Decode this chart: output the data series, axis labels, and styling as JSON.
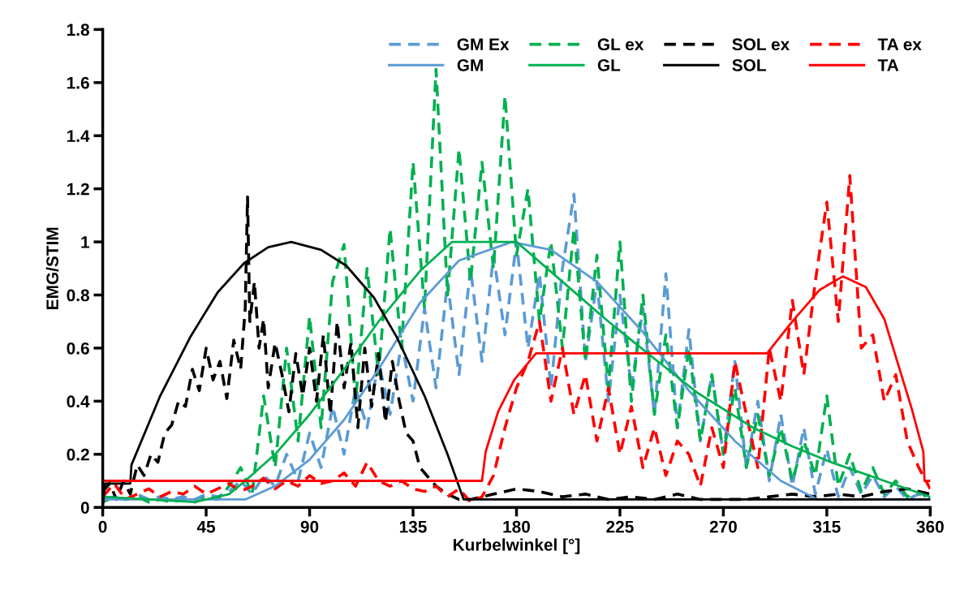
{
  "chart_data": {
    "type": "line",
    "xlabel": "Kurbelwinkel [°]",
    "ylabel": "EMG/STIM",
    "xlim": [
      0,
      360
    ],
    "xticks": [
      0,
      45,
      90,
      135,
      180,
      225,
      270,
      315,
      360
    ],
    "ylim": [
      0,
      1.8
    ],
    "yticks": [
      0,
      0.2,
      0.4,
      0.6,
      0.8,
      1,
      1.2,
      1.4,
      1.6,
      1.8
    ],
    "grid": false,
    "legend": "top right",
    "marker": "none",
    "series": [
      {
        "name": "GM Ex",
        "color": "#5b9bd5",
        "line_style": "dashed",
        "x": [
          0,
          5,
          10,
          15,
          20,
          25,
          30,
          35,
          40,
          45,
          50,
          55,
          60,
          65,
          70,
          75,
          80,
          85,
          90,
          95,
          100,
          105,
          110,
          115,
          120,
          125,
          130,
          135,
          140,
          145,
          150,
          155,
          160,
          165,
          170,
          175,
          180,
          185,
          190,
          195,
          200,
          205,
          210,
          215,
          220,
          225,
          230,
          235,
          240,
          245,
          250,
          255,
          260,
          265,
          270,
          275,
          280,
          285,
          290,
          295,
          300,
          305,
          310,
          315,
          320,
          325,
          330,
          335,
          340,
          345,
          350,
          355,
          360
        ],
        "values": [
          0.03,
          0.04,
          0.03,
          0.05,
          0.03,
          0.04,
          0.03,
          0.04,
          0.03,
          0.05,
          0.04,
          0.06,
          0.1,
          0.05,
          0.12,
          0.08,
          0.2,
          0.1,
          0.28,
          0.15,
          0.38,
          0.2,
          0.45,
          0.3,
          0.55,
          0.35,
          0.62,
          0.4,
          0.75,
          0.45,
          0.85,
          0.5,
          0.9,
          0.55,
          0.95,
          0.65,
          1.0,
          0.6,
          0.88,
          0.45,
          0.9,
          1.18,
          0.55,
          0.85,
          0.4,
          0.8,
          0.45,
          0.75,
          0.35,
          0.88,
          0.3,
          0.67,
          0.25,
          0.5,
          0.2,
          0.55,
          0.15,
          0.4,
          0.1,
          0.35,
          0.08,
          0.3,
          0.05,
          0.22,
          0.04,
          0.15,
          0.05,
          0.12,
          0.04,
          0.08,
          0.03,
          0.05,
          0.03
        ]
      },
      {
        "name": "GM",
        "color": "#5b9bd5",
        "line_style": "solid",
        "x": [
          0,
          62,
          75,
          90,
          105,
          120,
          138,
          155,
          178,
          195,
          215,
          235,
          255,
          275,
          295,
          311,
          360
        ],
        "values": [
          0.03,
          0.03,
          0.08,
          0.18,
          0.33,
          0.52,
          0.77,
          0.93,
          1.0,
          0.97,
          0.85,
          0.66,
          0.44,
          0.25,
          0.1,
          0.03,
          0.03
        ]
      },
      {
        "name": "GL ex",
        "color": "#00b050",
        "line_style": "dashed",
        "x": [
          0,
          5,
          10,
          15,
          20,
          25,
          30,
          35,
          40,
          45,
          50,
          55,
          60,
          65,
          70,
          75,
          80,
          85,
          90,
          95,
          100,
          105,
          110,
          115,
          120,
          125,
          130,
          135,
          140,
          145,
          150,
          155,
          160,
          165,
          170,
          175,
          180,
          185,
          190,
          195,
          200,
          205,
          210,
          215,
          220,
          225,
          230,
          235,
          240,
          245,
          250,
          255,
          260,
          265,
          270,
          275,
          280,
          285,
          290,
          295,
          300,
          305,
          310,
          315,
          320,
          325,
          330,
          335,
          340,
          345,
          350,
          355,
          360
        ],
        "values": [
          0.02,
          0.04,
          0.03,
          0.04,
          0.02,
          0.03,
          0.02,
          0.03,
          0.02,
          0.04,
          0.03,
          0.08,
          0.15,
          0.05,
          0.42,
          0.15,
          0.6,
          0.25,
          0.72,
          0.3,
          0.85,
          0.99,
          0.4,
          0.9,
          0.5,
          1.05,
          0.6,
          1.3,
          0.75,
          1.65,
          0.8,
          1.35,
          0.85,
          1.3,
          0.9,
          1.55,
          0.95,
          1.2,
          0.7,
          1.0,
          0.6,
          1.05,
          0.55,
          0.95,
          0.45,
          1.0,
          0.4,
          0.8,
          0.35,
          0.65,
          0.3,
          0.6,
          0.25,
          0.5,
          0.2,
          0.45,
          0.15,
          0.35,
          0.12,
          0.3,
          0.1,
          0.25,
          0.12,
          0.42,
          0.08,
          0.2,
          0.06,
          0.15,
          0.05,
          0.1,
          0.04,
          0.06,
          0.03
        ]
      },
      {
        "name": "GL",
        "color": "#00b050",
        "line_style": "solid",
        "x": [
          0,
          20,
          40,
          55,
          62,
          75,
          90,
          105,
          120,
          138,
          152,
          180,
          200,
          220,
          240,
          259,
          283,
          300,
          317,
          340,
          360
        ],
        "values": [
          0.04,
          0.03,
          0.02,
          0.05,
          0.1,
          0.2,
          0.35,
          0.52,
          0.7,
          0.89,
          1.0,
          1.0,
          0.85,
          0.7,
          0.56,
          0.43,
          0.3,
          0.23,
          0.17,
          0.1,
          0.04
        ]
      },
      {
        "name": "SOL ex",
        "color": "#000000",
        "line_style": "dashed",
        "x": [
          0,
          3,
          6,
          9,
          12,
          15,
          18,
          21,
          24,
          27,
          30,
          33,
          36,
          39,
          42,
          45,
          48,
          51,
          54,
          57,
          60,
          62,
          63,
          64,
          66,
          68,
          70,
          72,
          75,
          78,
          81,
          84,
          87,
          90,
          93,
          96,
          99,
          102,
          105,
          108,
          111,
          114,
          117,
          120,
          123,
          126,
          129,
          132,
          135,
          138,
          141,
          145,
          150,
          155,
          160,
          170,
          180,
          190,
          200,
          210,
          220,
          230,
          240,
          250,
          260,
          270,
          280,
          290,
          300,
          310,
          320,
          330,
          340,
          350,
          360
        ],
        "values": [
          0.06,
          0.09,
          0.03,
          0.1,
          0.05,
          0.16,
          0.12,
          0.2,
          0.17,
          0.28,
          0.31,
          0.4,
          0.38,
          0.52,
          0.44,
          0.6,
          0.48,
          0.55,
          0.41,
          0.63,
          0.52,
          0.75,
          1.17,
          0.7,
          0.85,
          0.6,
          0.71,
          0.45,
          0.62,
          0.5,
          0.36,
          0.58,
          0.42,
          0.6,
          0.4,
          0.65,
          0.35,
          0.7,
          0.45,
          0.62,
          0.3,
          0.6,
          0.38,
          0.58,
          0.32,
          0.55,
          0.4,
          0.28,
          0.25,
          0.15,
          0.12,
          0.08,
          0.05,
          0.03,
          0.03,
          0.05,
          0.07,
          0.06,
          0.04,
          0.05,
          0.03,
          0.04,
          0.03,
          0.05,
          0.03,
          0.03,
          0.03,
          0.04,
          0.05,
          0.04,
          0.05,
          0.04,
          0.06,
          0.07,
          0.05
        ]
      },
      {
        "name": "SOL",
        "color": "#000000",
        "line_style": "solid",
        "x": [
          0,
          1,
          12,
          12.5,
          25,
          38,
          50,
          61.5,
          72,
          82,
          95,
          106,
          118,
          128,
          140,
          150,
          157,
          360
        ],
        "values": [
          0,
          0.09,
          0.09,
          0.16,
          0.42,
          0.64,
          0.81,
          0.92,
          0.98,
          1.0,
          0.97,
          0.91,
          0.79,
          0.64,
          0.42,
          0.2,
          0.03,
          0.03
        ]
      },
      {
        "name": "TA ex",
        "color": "#ff0000",
        "line_style": "dashed",
        "x": [
          0,
          5,
          10,
          15,
          20,
          25,
          30,
          35,
          40,
          45,
          50,
          55,
          60,
          65,
          70,
          75,
          80,
          85,
          90,
          95,
          100,
          105,
          110,
          115,
          120,
          125,
          130,
          135,
          140,
          145,
          150,
          155,
          160,
          165,
          170,
          175,
          180,
          185,
          190,
          195,
          200,
          205,
          210,
          215,
          220,
          225,
          230,
          235,
          240,
          245,
          250,
          255,
          260,
          265,
          270,
          275,
          280,
          285,
          290,
          295,
          300,
          305,
          310,
          315,
          320,
          325,
          330,
          335,
          340,
          345,
          350,
          355,
          360
        ],
        "values": [
          0.04,
          0.09,
          0.03,
          0.05,
          0.07,
          0.04,
          0.06,
          0.05,
          0.08,
          0.05,
          0.07,
          0.09,
          0.06,
          0.08,
          0.11,
          0.07,
          0.1,
          0.08,
          0.12,
          0.09,
          0.1,
          0.13,
          0.08,
          0.17,
          0.1,
          0.08,
          0.1,
          0.07,
          0.06,
          0.08,
          0.04,
          0.07,
          0.02,
          0.04,
          0.12,
          0.3,
          0.45,
          0.55,
          0.7,
          0.4,
          0.6,
          0.35,
          0.5,
          0.25,
          0.45,
          0.2,
          0.38,
          0.15,
          0.3,
          0.12,
          0.25,
          0.2,
          0.08,
          0.3,
          0.15,
          0.55,
          0.35,
          0.15,
          0.6,
          0.4,
          0.78,
          0.5,
          0.85,
          1.15,
          0.7,
          1.25,
          0.6,
          0.65,
          0.4,
          0.5,
          0.25,
          0.15,
          0.07
        ]
      },
      {
        "name": "TA",
        "color": "#ff0000",
        "line_style": "solid",
        "x": [
          0,
          165,
          166.6,
          172,
          179,
          188.5,
          289,
          300,
          312,
          322,
          332,
          340,
          346.7,
          352,
          357,
          357.5,
          360
        ],
        "values": [
          0.1,
          0.1,
          0.21,
          0.36,
          0.48,
          0.58,
          0.58,
          0.7,
          0.82,
          0.87,
          0.83,
          0.71,
          0.52,
          0.37,
          0.21,
          0.1,
          0.1
        ]
      }
    ]
  }
}
